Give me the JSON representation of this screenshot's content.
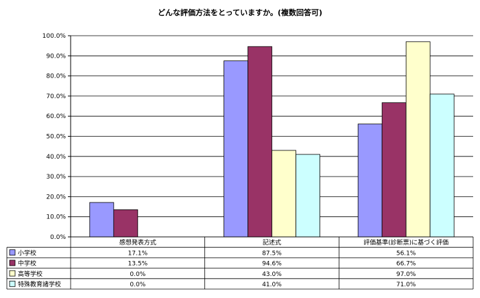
{
  "chart_data": {
    "type": "bar",
    "title": "どんな評価方法をとっていますか。(複数回答可)",
    "categories": [
      "感想発表方式",
      "記述式",
      "評価基準(診断票)に基づく評価"
    ],
    "series": [
      {
        "name": "小学校",
        "values": [
          17.1,
          87.5,
          56.1
        ],
        "labels": [
          "17.1%",
          "87.5%",
          "56.1%"
        ],
        "color": "#9999ff"
      },
      {
        "name": "中学校",
        "values": [
          13.5,
          94.6,
          66.7
        ],
        "labels": [
          "13.5%",
          "94.6%",
          "66.7%"
        ],
        "color": "#993366"
      },
      {
        "name": "高等学校",
        "values": [
          0.0,
          43.0,
          97.0
        ],
        "labels": [
          "0.0%",
          "43.0%",
          "97.0%"
        ],
        "color": "#ffffcc"
      },
      {
        "name": "特殊教育諸学校",
        "values": [
          0.0,
          41.0,
          71.0
        ],
        "labels": [
          "0.0%",
          "41.0%",
          "71.0%"
        ],
        "color": "#ccffff"
      }
    ],
    "ylim": [
      0,
      100
    ],
    "yticks": [
      "0.0%",
      "10.0%",
      "20.0%",
      "30.0%",
      "40.0%",
      "50.0%",
      "60.0%",
      "70.0%",
      "80.0%",
      "90.0%",
      "100.0%"
    ],
    "grid": true,
    "legend": "data-table-left"
  }
}
